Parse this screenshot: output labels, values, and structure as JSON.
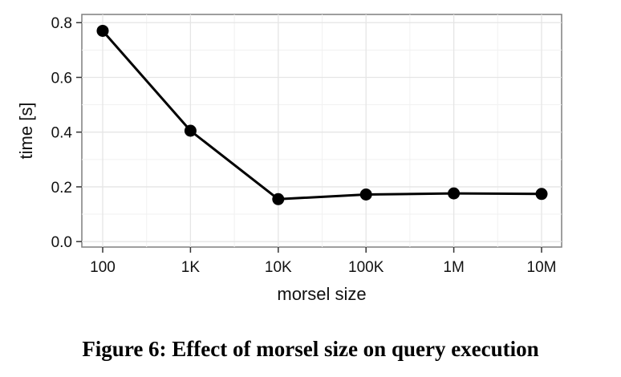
{
  "chart_data": {
    "type": "line",
    "xlabel": "morsel size",
    "ylabel": "time [s]",
    "xscale": "log",
    "categories": [
      "100",
      "1K",
      "10K",
      "100K",
      "1M",
      "10M"
    ],
    "x": [
      100,
      1000,
      10000,
      100000,
      1000000,
      10000000
    ],
    "series": [
      {
        "values": [
          0.77,
          0.405,
          0.155,
          0.172,
          0.176,
          0.174
        ]
      }
    ],
    "y_ticks": [
      "0.0",
      "0.2",
      "0.4",
      "0.6",
      "0.8"
    ],
    "y_tick_values": [
      0.0,
      0.2,
      0.4,
      0.6,
      0.8
    ],
    "ylim": [
      -0.02,
      0.83
    ],
    "grid": true,
    "legend": "none",
    "colors": {
      "line": "#000000",
      "grid": "#e5e5e5",
      "border": "#7f7f7f"
    }
  },
  "caption": "Figure 6: Effect of morsel size on query execution"
}
